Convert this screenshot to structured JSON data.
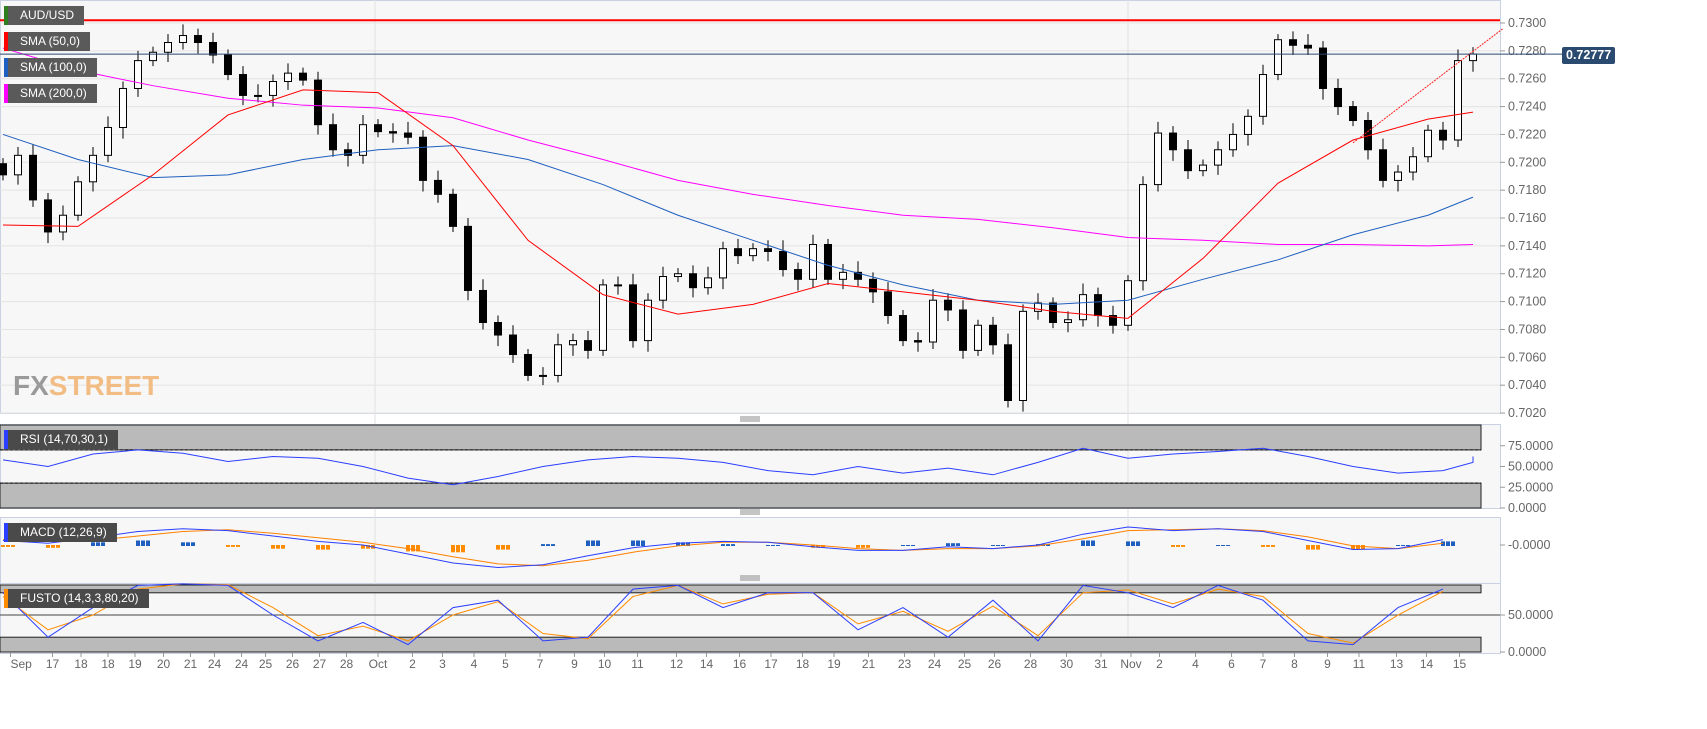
{
  "chart_data": {
    "type": "candlestick",
    "symbol": "AUD/USD",
    "legend": [
      {
        "label": "AUD/USD",
        "color": "#2e7d1e"
      },
      {
        "label": "SMA (50,0)",
        "color": "#ff0000"
      },
      {
        "label": "SMA (100,0)",
        "color": "#1f5fbf"
      },
      {
        "label": "SMA (200,0)",
        "color": "#ff00ff"
      }
    ],
    "ylim": [
      0.702,
      0.73
    ],
    "y_ticks": [
      "0.7020",
      "0.7040",
      "0.7060",
      "0.7080",
      "0.7100",
      "0.7120",
      "0.7140",
      "0.7160",
      "0.7180",
      "0.7200",
      "0.7220",
      "0.7240",
      "0.7260",
      "0.7280",
      "0.7300"
    ],
    "current_price": "0.72777",
    "resistance_level": 0.7302,
    "closes": [
      0.7191,
      0.7205,
      0.7173,
      0.715,
      0.7162,
      0.7186,
      0.7205,
      0.7225,
      0.7253,
      0.7273,
      0.7279,
      0.7286,
      0.7291,
      0.7286,
      0.7277,
      0.7263,
      0.7248,
      0.7248,
      0.7258,
      0.7264,
      0.7259,
      0.7227,
      0.7209,
      0.7205,
      0.7227,
      0.7222,
      0.7221,
      0.7218,
      0.7187,
      0.7177,
      0.7154,
      0.7108,
      0.7085,
      0.7076,
      0.7062,
      0.7047,
      0.7047,
      0.7069,
      0.7072,
      0.7065,
      0.7112,
      0.7112,
      0.7072,
      0.7101,
      0.7118,
      0.712,
      0.711,
      0.7117,
      0.7138,
      0.7133,
      0.7138,
      0.7136,
      0.7123,
      0.7116,
      0.7141,
      0.7116,
      0.7121,
      0.7116,
      0.7107,
      0.709,
      0.7072,
      0.7071,
      0.7101,
      0.7094,
      0.7065,
      0.7083,
      0.7069,
      0.7029,
      0.7093,
      0.7099,
      0.7085,
      0.7087,
      0.7105,
      0.709,
      0.7083,
      0.7115,
      0.7184,
      0.7221,
      0.7209,
      0.7194,
      0.7198,
      0.7209,
      0.722,
      0.7233,
      0.7263,
      0.7288,
      0.7284,
      0.7282,
      0.7253,
      0.724,
      0.723,
      0.7209,
      0.7187,
      0.7193,
      0.7204,
      0.7223,
      0.7216,
      0.7273,
      0.72777
    ],
    "sma_step": 5,
    "sma50": [
      0.7155,
      0.7154,
      0.7191,
      0.7234,
      0.7252,
      0.725,
      0.7212,
      0.7144,
      0.7105,
      0.7091,
      0.7098,
      0.7113,
      0.7107,
      0.7101,
      0.7093,
      0.7088,
      0.7131,
      0.7185,
      0.7216,
      0.7231,
      0.7236
    ],
    "sma100": [
      0.722,
      0.7202,
      0.7189,
      0.7191,
      0.7202,
      0.7209,
      0.7212,
      0.7202,
      0.7184,
      0.7162,
      0.7144,
      0.7126,
      0.7112,
      0.7101,
      0.7098,
      0.7101,
      0.7116,
      0.713,
      0.7148,
      0.7162,
      0.7175
    ],
    "sma200": [
      0.7282,
      0.7266,
      0.7255,
      0.7246,
      0.7241,
      0.7239,
      0.7232,
      0.7216,
      0.7202,
      0.7187,
      0.7177,
      0.7169,
      0.7162,
      0.7159,
      0.7153,
      0.7146,
      0.7144,
      0.7141,
      0.7141,
      0.714,
      0.7141
    ],
    "trendline": [
      [
        90,
        0.7214
      ],
      [
        100,
        0.7296
      ]
    ],
    "x_ticks": [
      {
        "label": "Sep",
        "i": 0.5
      },
      {
        "label": "17",
        "i": 3.3
      },
      {
        "label": "18",
        "i": 5.2
      },
      {
        "label": "18",
        "i": 7
      },
      {
        "label": "19",
        "i": 8.8
      },
      {
        "label": "20",
        "i": 10.7
      },
      {
        "label": "21",
        "i": 12.5
      },
      {
        "label": "24",
        "i": 14.1
      },
      {
        "label": "24",
        "i": 15.9
      },
      {
        "label": "25",
        "i": 17.5
      },
      {
        "label": "26",
        "i": 19.3
      },
      {
        "label": "27",
        "i": 21.1
      },
      {
        "label": "28",
        "i": 22.9
      },
      {
        "label": "Oct",
        "i": 25
      },
      {
        "label": "2",
        "i": 27.3
      },
      {
        "label": "3",
        "i": 29.3
      },
      {
        "label": "4",
        "i": 31.4
      },
      {
        "label": "5",
        "i": 33.5
      },
      {
        "label": "7",
        "i": 35.8
      },
      {
        "label": "9",
        "i": 38.1
      },
      {
        "label": "10",
        "i": 40.1
      },
      {
        "label": "11",
        "i": 42.3
      },
      {
        "label": "12",
        "i": 44.9
      },
      {
        "label": "14",
        "i": 46.9
      },
      {
        "label": "16",
        "i": 49.1
      },
      {
        "label": "17",
        "i": 51.2
      },
      {
        "label": "18",
        "i": 53.3
      },
      {
        "label": "19",
        "i": 55.4
      },
      {
        "label": "21",
        "i": 57.7
      },
      {
        "label": "23",
        "i": 60.1
      },
      {
        "label": "24",
        "i": 62.1
      },
      {
        "label": "25",
        "i": 64.1
      },
      {
        "label": "26",
        "i": 66.1
      },
      {
        "label": "28",
        "i": 68.5
      },
      {
        "label": "30",
        "i": 70.9
      },
      {
        "label": "31",
        "i": 73.2
      },
      {
        "label": "Nov",
        "i": 75.2
      },
      {
        "label": "2",
        "i": 77.1
      },
      {
        "label": "4",
        "i": 79.5
      },
      {
        "label": "6",
        "i": 81.9
      },
      {
        "label": "7",
        "i": 84
      },
      {
        "label": "8",
        "i": 86.1
      },
      {
        "label": "9",
        "i": 88.3
      },
      {
        "label": "11",
        "i": 90.4
      },
      {
        "label": "13",
        "i": 92.9
      },
      {
        "label": "14",
        "i": 94.9
      },
      {
        "label": "15",
        "i": 97.1
      }
    ],
    "indicator_step": 3,
    "rsi": {
      "label": "RSI (14,70,30,1)",
      "levels": [
        70,
        30
      ],
      "y_ticks": [
        "0.0000",
        "25.0000",
        "50.0000",
        "75.0000"
      ],
      "values": [
        58,
        50,
        65,
        70,
        66,
        56,
        62,
        60,
        50,
        36,
        28,
        38,
        50,
        58,
        62,
        60,
        55,
        45,
        40,
        50,
        42,
        48,
        40,
        55,
        72,
        60,
        65,
        68,
        72,
        62,
        50,
        42,
        45,
        55,
        62
      ]
    },
    "macd": {
      "label": "MACD (12,26,9)",
      "y_ticks": [
        "-0.0000"
      ],
      "macd": [
        0.0005,
        0.0002,
        0.0008,
        0.0015,
        0.0018,
        0.0016,
        0.001,
        0.0004,
        0.0,
        -0.001,
        -0.002,
        -0.0025,
        -0.0022,
        -0.0012,
        -0.0003,
        0.0002,
        0.0004,
        0.0003,
        -0.0002,
        -0.0006,
        -0.0006,
        -0.0002,
        -0.0004,
        0.0,
        0.0012,
        0.002,
        0.0016,
        0.0018,
        0.0015,
        0.0005,
        -0.0005,
        -0.0004,
        0.0006
      ],
      "signal": [
        0.0006,
        0.0004,
        0.0005,
        0.001,
        0.0015,
        0.0017,
        0.0013,
        0.0008,
        0.0003,
        -0.0004,
        -0.0013,
        -0.0021,
        -0.0023,
        -0.0017,
        -0.0008,
        -0.0001,
        0.0003,
        0.0003,
        0.0,
        -0.0004,
        -0.0006,
        -0.0004,
        -0.0004,
        -0.0001,
        0.0007,
        0.0016,
        0.0017,
        0.0018,
        0.0016,
        0.0009,
        -0.0001,
        -0.0004,
        0.0002
      ]
    },
    "stoch": {
      "label": "FUSTO (14,3,3,80,20)",
      "levels": [
        80,
        20
      ],
      "y_ticks": [
        "0.0000",
        "50.0000"
      ],
      "k": [
        80,
        20,
        60,
        90,
        92,
        90,
        50,
        15,
        40,
        10,
        60,
        70,
        15,
        20,
        85,
        90,
        60,
        80,
        80,
        30,
        60,
        20,
        70,
        15,
        90,
        80,
        60,
        90,
        70,
        15,
        10,
        60,
        85
      ],
      "d": [
        75,
        30,
        50,
        85,
        92,
        91,
        60,
        22,
        35,
        15,
        50,
        68,
        25,
        18,
        75,
        90,
        65,
        78,
        80,
        38,
        55,
        28,
        62,
        22,
        80,
        84,
        65,
        85,
        75,
        25,
        12,
        50,
        82
      ]
    },
    "colors": {
      "up": "#ffffff",
      "down": "#000000",
      "rsi": "#2b3fff",
      "macd": "#2b3fff",
      "signal": "#ff8000",
      "hist_pos": "#1f5fbf",
      "hist_neg": "#ff8c00",
      "k": "#2b3fff",
      "d": "#ff8c00"
    }
  },
  "watermark": {
    "fx": "FX",
    "street": "STREET"
  }
}
